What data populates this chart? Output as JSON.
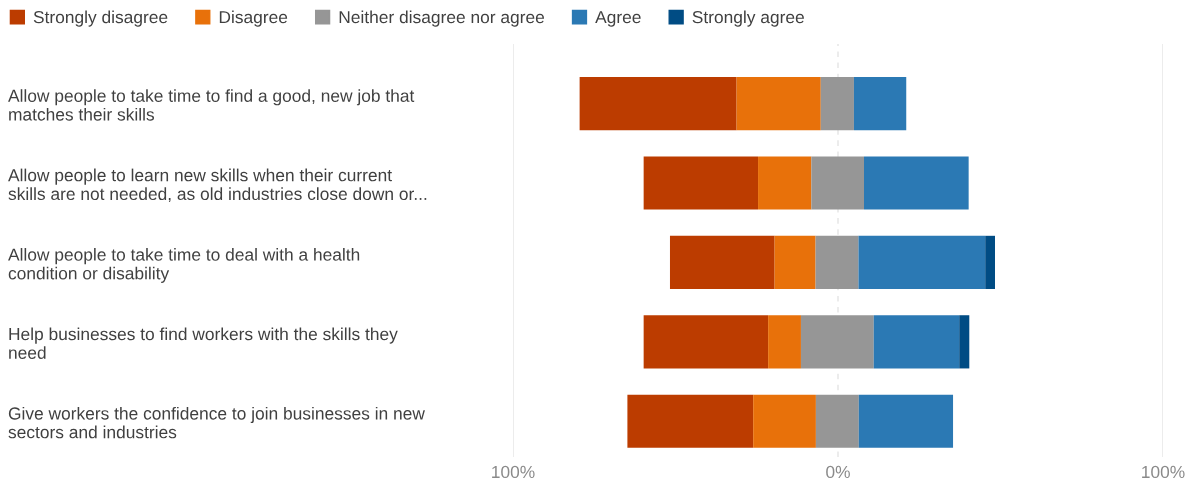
{
  "chart_data": {
    "type": "bar",
    "orientation": "horizontal",
    "categories": [
      "Allow people to take time to find a good, new job that\nmatches their skills",
      "Allow people to learn new skills when their current\nskills are not needed, as old industries close down or...",
      "Allow people to take time to deal with a health\ncondition or disability",
      "Help businesses to find workers with the skills they\nneed",
      "Give workers the confidence to join businesses in new\nsectors and industries"
    ],
    "series": [
      {
        "name": "Strongly disagree",
        "color": "#bc3c00",
        "base": [
          -79.5,
          -59.8,
          -51.7,
          -59.8,
          -64.8
        ],
        "values": [
          48.3,
          35.2,
          32.2,
          38.3,
          38.7
        ]
      },
      {
        "name": "Disagree",
        "color": "#e8710a",
        "base": [
          -31.2,
          -24.6,
          -19.5,
          -21.5,
          -26.1
        ],
        "values": [
          25.9,
          16.4,
          12.6,
          10.1,
          19.3
        ]
      },
      {
        "name": "Neither disagree nor agree",
        "color": "#969696",
        "base": [
          -5.3,
          -8.2,
          -6.9,
          -11.4,
          -6.8
        ],
        "values": [
          10.2,
          16.2,
          13.2,
          22.4,
          13.2
        ]
      },
      {
        "name": "Agree",
        "color": "#2b79b4",
        "base": [
          4.9,
          8.0,
          6.3,
          11.0,
          6.4
        ],
        "values": [
          16.1,
          32.2,
          39.0,
          26.3,
          29.0
        ]
      },
      {
        "name": "Strongly agree",
        "color": "#004c84",
        "base": [
          null,
          null,
          45.3,
          37.3,
          null
        ],
        "values": [
          null,
          null,
          3.0,
          3.1,
          null
        ]
      }
    ],
    "xlim": [
      -100,
      100
    ],
    "xticks": [
      {
        "value": -100,
        "label": "100%"
      },
      {
        "value": 0,
        "label": "0%"
      },
      {
        "value": 100,
        "label": "100%"
      }
    ],
    "grid": "x",
    "legend": "top left"
  }
}
